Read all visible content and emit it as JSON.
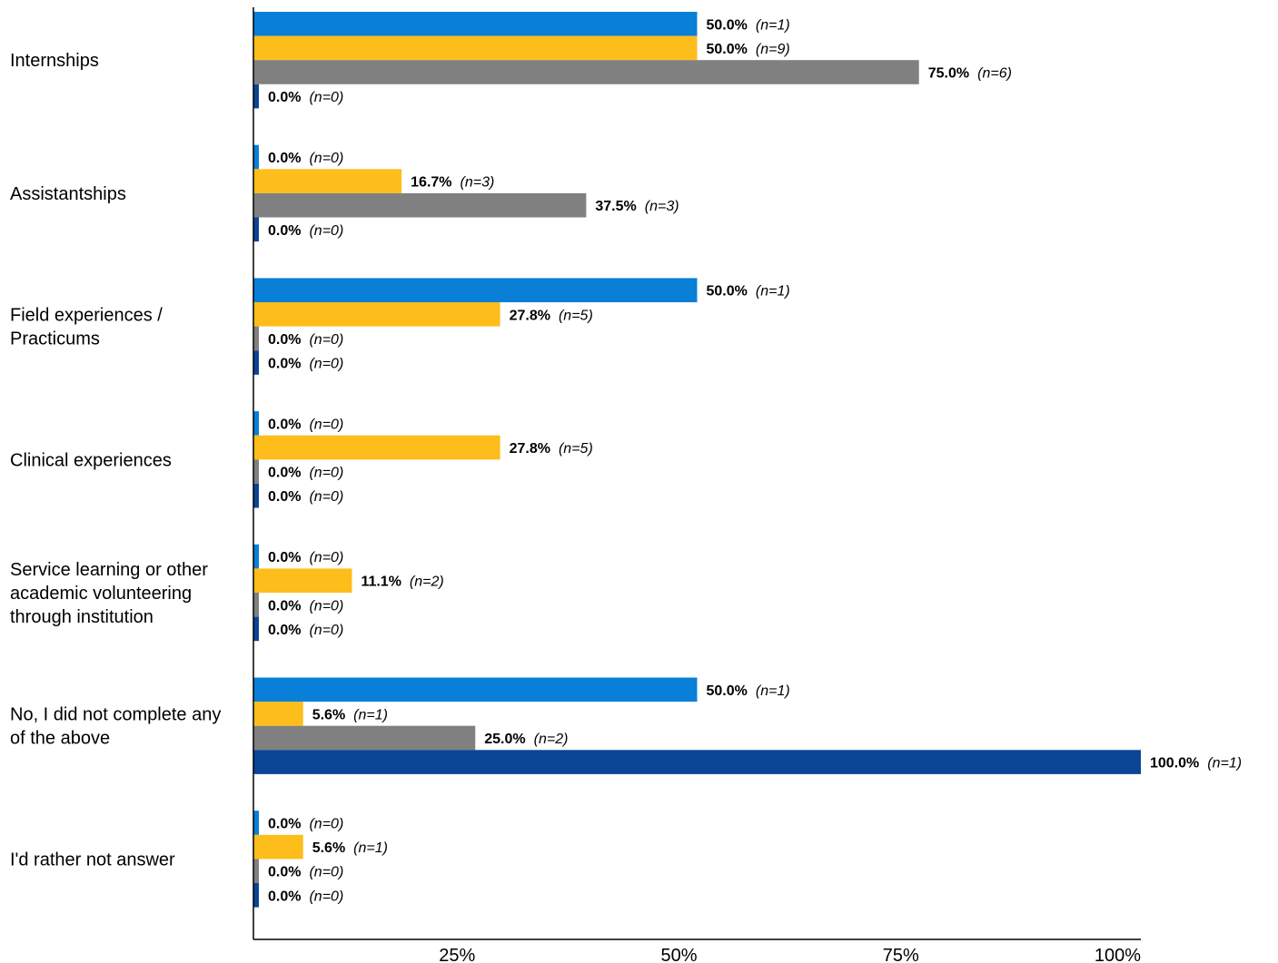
{
  "chart_data": {
    "type": "bar",
    "orientation": "horizontal",
    "categories": [
      [
        "Internships"
      ],
      [
        "Assistantships"
      ],
      [
        "Field experiences /",
        "Practicums"
      ],
      [
        "Clinical experiences"
      ],
      [
        "Service learning or other",
        "academic volunteering",
        "through institution"
      ],
      [
        "No, I did not complete any",
        "of the above"
      ],
      [
        "I'd rather not answer"
      ]
    ],
    "series": [
      {
        "color": "#0a7fd8",
        "values": [
          50.0,
          0.0,
          50.0,
          0.0,
          0.0,
          50.0,
          0.0
        ],
        "value_labels": [
          "50.0%",
          "0.0%",
          "50.0%",
          "0.0%",
          "0.0%",
          "50.0%",
          "0.0%"
        ],
        "n_labels": [
          "(n=1)",
          "(n=0)",
          "(n=1)",
          "(n=0)",
          "(n=0)",
          "(n=1)",
          "(n=0)"
        ]
      },
      {
        "color": "#fdbd1b",
        "values": [
          50.0,
          16.7,
          27.8,
          27.8,
          11.1,
          5.6,
          5.6
        ],
        "value_labels": [
          "50.0%",
          "16.7%",
          "27.8%",
          "27.8%",
          "11.1%",
          "5.6%",
          "5.6%"
        ],
        "n_labels": [
          "(n=9)",
          "(n=3)",
          "(n=5)",
          "(n=5)",
          "(n=2)",
          "(n=1)",
          "(n=1)"
        ]
      },
      {
        "color": "#808080",
        "values": [
          75.0,
          37.5,
          0.0,
          0.0,
          0.0,
          25.0,
          0.0
        ],
        "value_labels": [
          "75.0%",
          "37.5%",
          "0.0%",
          "0.0%",
          "0.0%",
          "25.0%",
          "0.0%"
        ],
        "n_labels": [
          "(n=6)",
          "(n=3)",
          "(n=0)",
          "(n=0)",
          "(n=0)",
          "(n=2)",
          "(n=0)"
        ]
      },
      {
        "color": "#0a4596",
        "values": [
          0.0,
          0.0,
          0.0,
          0.0,
          0.0,
          100.0,
          0.0
        ],
        "value_labels": [
          "0.0%",
          "0.0%",
          "0.0%",
          "0.0%",
          "0.0%",
          "100.0%",
          "0.0%"
        ],
        "n_labels": [
          "(n=0)",
          "(n=0)",
          "(n=0)",
          "(n=0)",
          "(n=0)",
          "(n=1)",
          "(n=0)"
        ]
      }
    ],
    "xlim": [
      0,
      100
    ],
    "x_ticks": [
      25,
      50,
      75,
      100
    ],
    "x_tick_labels": [
      "25%",
      "50%",
      "75%",
      "100%"
    ],
    "grid": false,
    "legend": "none"
  }
}
